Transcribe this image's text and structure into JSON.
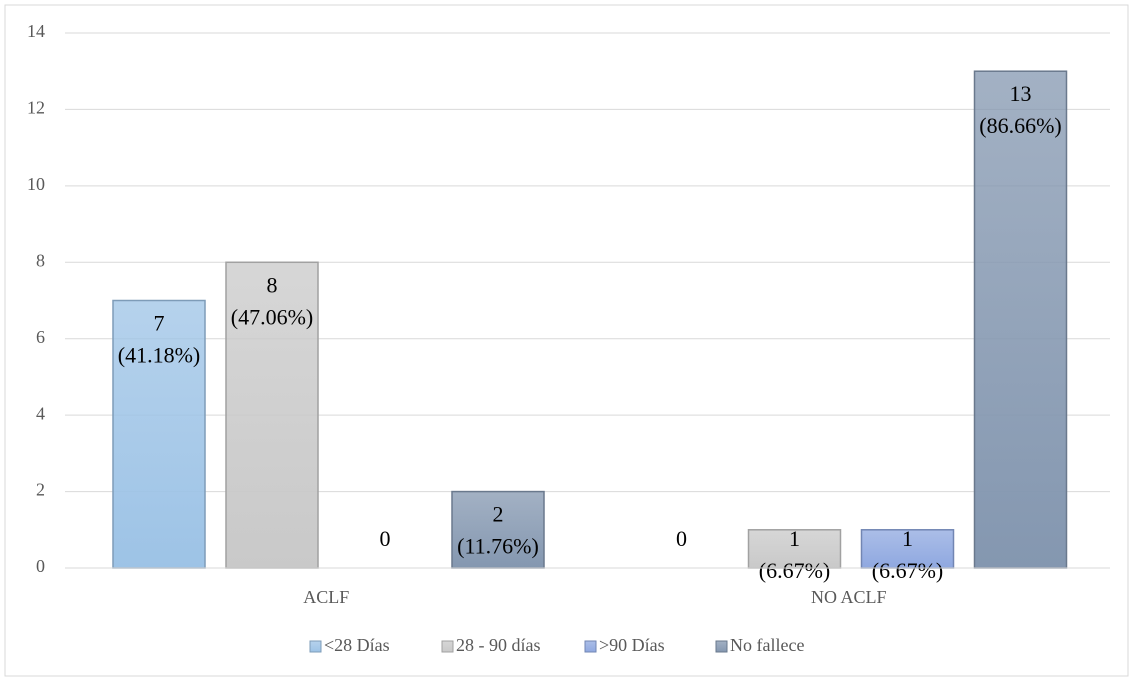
{
  "chart_data": {
    "type": "bar",
    "categories": [
      "ACLF",
      "NO ACLF"
    ],
    "series": [
      {
        "name": "<28 Días",
        "color": "#9dc3e6",
        "values": [
          7,
          0
        ],
        "value_labels": [
          "7 (41.18%)",
          "0"
        ]
      },
      {
        "name": "28 - 90 días",
        "color": "#c9c9c9",
        "values": [
          8,
          1
        ],
        "value_labels": [
          "8 (47.06%)",
          "1 (6.67%)"
        ]
      },
      {
        "name": ">90 Días",
        "color": "#8fa8e0",
        "values": [
          0,
          1
        ],
        "value_labels": [
          "0",
          "1 (6.67%)"
        ]
      },
      {
        "name": "No fallece",
        "color": "#8497b0",
        "values": [
          2,
          13
        ],
        "value_labels": [
          "2 (11.76%)",
          "13 (86.66%)"
        ]
      }
    ],
    "ylim": [
      0,
      14
    ],
    "yticks": [
      0,
      2,
      4,
      6,
      8,
      10,
      12,
      14
    ],
    "grid": true,
    "legend": "bottom"
  }
}
